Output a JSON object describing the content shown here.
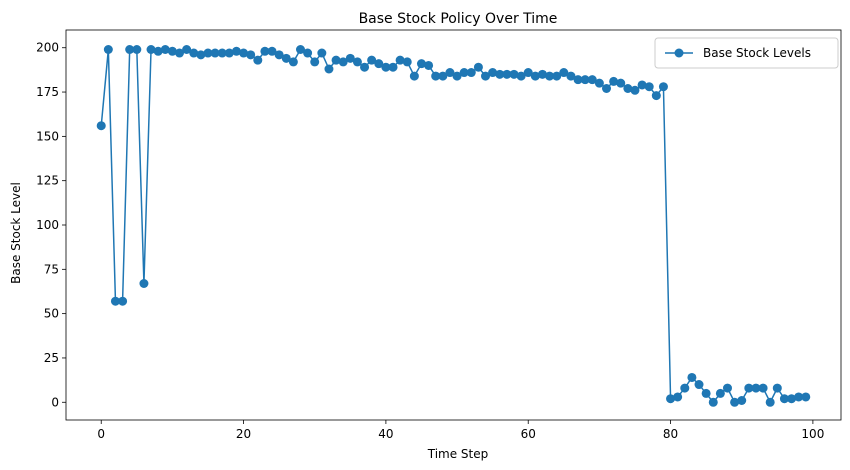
{
  "chart_data": {
    "type": "line",
    "title": "Base Stock Policy Over Time",
    "xlabel": "Time Step",
    "ylabel": "Base Stock Level",
    "xlim": [
      -4.95,
      103.95
    ],
    "ylim": [
      -10,
      210
    ],
    "xticks": [
      0,
      20,
      40,
      60,
      80,
      100
    ],
    "yticks": [
      0,
      25,
      50,
      75,
      100,
      125,
      150,
      175,
      200
    ],
    "grid": false,
    "legend": "top-right",
    "series": [
      {
        "name": "Base Stock Levels",
        "color": "#1f77b4",
        "marker": "circle",
        "x": [
          0,
          1,
          2,
          3,
          4,
          5,
          6,
          7,
          8,
          9,
          10,
          11,
          12,
          13,
          14,
          15,
          16,
          17,
          18,
          19,
          20,
          21,
          22,
          23,
          24,
          25,
          26,
          27,
          28,
          29,
          30,
          31,
          32,
          33,
          34,
          35,
          36,
          37,
          38,
          39,
          40,
          41,
          42,
          43,
          44,
          45,
          46,
          47,
          48,
          49,
          50,
          51,
          52,
          53,
          54,
          55,
          56,
          57,
          58,
          59,
          60,
          61,
          62,
          63,
          64,
          65,
          66,
          67,
          68,
          69,
          70,
          71,
          72,
          73,
          74,
          75,
          76,
          77,
          78,
          79,
          80,
          81,
          82,
          83,
          84,
          85,
          86,
          87,
          88,
          89,
          90,
          91,
          92,
          93,
          94,
          95,
          96,
          97,
          98,
          99
        ],
        "y": [
          156,
          199,
          57,
          57,
          199,
          199,
          67,
          199,
          198,
          199,
          198,
          197,
          199,
          197,
          196,
          197,
          197,
          197,
          197,
          198,
          197,
          196,
          193,
          198,
          198,
          196,
          194,
          192,
          199,
          197,
          192,
          197,
          188,
          193,
          192,
          194,
          192,
          189,
          193,
          191,
          189,
          189,
          193,
          192,
          184,
          191,
          190,
          184,
          184,
          186,
          184,
          186,
          186,
          189,
          184,
          186,
          185,
          185,
          185,
          184,
          186,
          184,
          185,
          184,
          184,
          186,
          184,
          182,
          182,
          182,
          180,
          177,
          181,
          180,
          177,
          176,
          179,
          178,
          173,
          178,
          2,
          3,
          8,
          14,
          10,
          5,
          0,
          5,
          8,
          0,
          1,
          8,
          8,
          8,
          0,
          8,
          2,
          2,
          3,
          3
        ]
      }
    ]
  }
}
